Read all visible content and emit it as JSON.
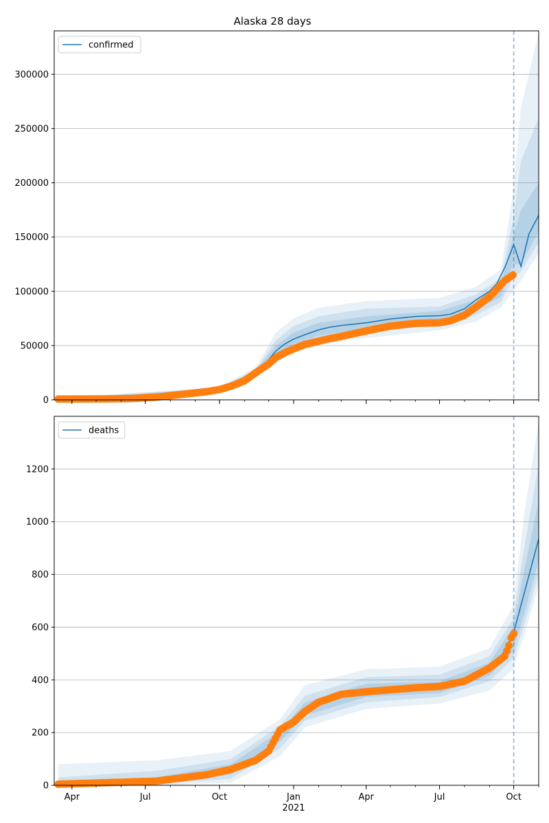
{
  "chart_data": [
    {
      "type": "line",
      "title": "Alaska 28 days",
      "ylim": [
        0,
        340000
      ],
      "yticks": [
        0,
        50000,
        100000,
        150000,
        200000,
        250000,
        300000
      ],
      "grid": "y",
      "legend": {
        "position": "top-left",
        "entries": [
          "confirmed"
        ]
      },
      "vline_date": "2021-10-01",
      "series": [
        {
          "name": "confirmed",
          "kind": "model_median",
          "color": "#1f77b4",
          "x": [
            "2020-03-15",
            "2020-04-15",
            "2020-05-15",
            "2020-06-15",
            "2020-07-15",
            "2020-08-15",
            "2020-09-15",
            "2020-10-01",
            "2020-10-15",
            "2020-11-01",
            "2020-11-15",
            "2020-12-01",
            "2020-12-10",
            "2020-12-20",
            "2021-01-01",
            "2021-01-15",
            "2021-02-01",
            "2021-02-15",
            "2021-03-01",
            "2021-04-01",
            "2021-05-01",
            "2021-06-01",
            "2021-07-01",
            "2021-07-15",
            "2021-08-01",
            "2021-08-15",
            "2021-09-01",
            "2021-09-10",
            "2021-09-20",
            "2021-10-01",
            "2021-10-10",
            "2021-10-20",
            "2021-11-01"
          ],
          "y": [
            800,
            900,
            1100,
            1400,
            2600,
            5200,
            7800,
            9800,
            13000,
            18000,
            26000,
            37000,
            45000,
            51000,
            56000,
            60000,
            64500,
            67000,
            68500,
            71000,
            74500,
            76800,
            77500,
            79000,
            84000,
            92000,
            100000,
            107000,
            122000,
            143000,
            123000,
            153000,
            170000
          ]
        },
        {
          "name": "",
          "kind": "observed",
          "color": "#ff7f0e",
          "x": [
            "2020-03-15",
            "2020-04-15",
            "2020-05-15",
            "2020-06-15",
            "2020-07-15",
            "2020-08-15",
            "2020-09-15",
            "2020-10-01",
            "2020-10-15",
            "2020-11-01",
            "2020-11-15",
            "2020-12-01",
            "2020-12-10",
            "2020-12-20",
            "2021-01-01",
            "2021-01-15",
            "2021-02-01",
            "2021-02-15",
            "2021-03-01",
            "2021-04-01",
            "2021-05-01",
            "2021-06-01",
            "2021-07-01",
            "2021-07-15",
            "2021-08-01",
            "2021-08-15",
            "2021-09-01",
            "2021-09-10",
            "2021-09-20",
            "2021-09-30"
          ],
          "y": [
            700,
            800,
            900,
            1200,
            2500,
            5000,
            7500,
            9500,
            12500,
            17500,
            25000,
            33000,
            39000,
            43000,
            47000,
            51000,
            54000,
            56500,
            58500,
            63500,
            68000,
            70500,
            71000,
            73000,
            78000,
            85500,
            95000,
            102000,
            110000,
            115000
          ]
        }
      ],
      "bands": [
        {
          "opacity": 0.1,
          "x": [
            "2020-03-15",
            "2020-10-01",
            "2020-11-15",
            "2020-12-10",
            "2021-01-01",
            "2021-02-01",
            "2021-04-01",
            "2021-07-01",
            "2021-08-15",
            "2021-09-15",
            "2021-09-30",
            "2021-10-10",
            "2021-11-01"
          ],
          "lower": [
            0,
            8000,
            21000,
            34000,
            44000,
            51000,
            57000,
            64000,
            72000,
            85000,
            100000,
            110000,
            135000
          ],
          "upper": [
            1500,
            12000,
            30000,
            62000,
            75000,
            85000,
            91000,
            94000,
            104000,
            120000,
            190000,
            270000,
            338000
          ]
        },
        {
          "opacity": 0.12,
          "x": [
            "2020-03-15",
            "2020-10-01",
            "2020-11-15",
            "2020-12-10",
            "2021-01-01",
            "2021-02-01",
            "2021-04-01",
            "2021-07-01",
            "2021-08-15",
            "2021-09-15",
            "2021-09-30",
            "2021-10-10",
            "2021-11-01"
          ],
          "lower": [
            300,
            8500,
            23000,
            38000,
            48000,
            55000,
            62000,
            69000,
            78000,
            90000,
            112000,
            118000,
            145000
          ],
          "upper": [
            1200,
            11000,
            28000,
            55000,
            68000,
            77000,
            84000,
            86000,
            97000,
            112000,
            165000,
            220000,
            260000
          ]
        },
        {
          "opacity": 0.15,
          "x": [
            "2020-03-15",
            "2020-10-01",
            "2020-11-15",
            "2020-12-10",
            "2021-01-01",
            "2021-02-01",
            "2021-04-01",
            "2021-07-01",
            "2021-08-15",
            "2021-09-15",
            "2021-09-30",
            "2021-10-10",
            "2021-11-01"
          ],
          "lower": [
            500,
            9000,
            24500,
            41000,
            51000,
            59000,
            66000,
            73000,
            83000,
            95000,
            125000,
            125000,
            155000
          ],
          "upper": [
            1000,
            10500,
            27000,
            50000,
            62000,
            71000,
            77000,
            82000,
            92000,
            106000,
            150000,
            175000,
            200000
          ]
        }
      ]
    },
    {
      "type": "line",
      "title": "",
      "ylim": [
        0,
        1400
      ],
      "yticks": [
        0,
        200,
        400,
        600,
        800,
        1000,
        1200
      ],
      "grid": "y",
      "legend": {
        "position": "top-left",
        "entries": [
          "deaths"
        ]
      },
      "vline_date": "2021-10-01",
      "xticks": [
        {
          "date": "2020-04-01",
          "label": "Apr"
        },
        {
          "date": "2020-07-01",
          "label": "Jul"
        },
        {
          "date": "2020-10-01",
          "label": "Oct"
        },
        {
          "date": "2021-01-01",
          "label": "Jan",
          "sublabel": "2021"
        },
        {
          "date": "2021-04-01",
          "label": "Apr"
        },
        {
          "date": "2021-07-01",
          "label": "Jul"
        },
        {
          "date": "2021-10-01",
          "label": "Oct"
        }
      ],
      "series": [
        {
          "name": "deaths",
          "kind": "model_median",
          "color": "#1f77b4",
          "x": [
            "2020-03-15",
            "2020-05-15",
            "2020-07-15",
            "2020-09-15",
            "2020-10-15",
            "2020-11-15",
            "2020-12-01",
            "2020-12-15",
            "2021-01-01",
            "2021-01-15",
            "2021-02-01",
            "2021-03-01",
            "2021-04-01",
            "2021-06-01",
            "2021-07-01",
            "2021-08-01",
            "2021-09-01",
            "2021-09-20",
            "2021-10-01",
            "2021-10-15",
            "2021-11-01"
          ],
          "y": [
            4,
            10,
            18,
            45,
            62,
            100,
            140,
            205,
            250,
            290,
            320,
            345,
            358,
            368,
            378,
            395,
            440,
            510,
            580,
            740,
            935
          ]
        },
        {
          "name": "",
          "kind": "observed",
          "color": "#ff7f0e",
          "x": [
            "2020-03-15",
            "2020-05-15",
            "2020-07-15",
            "2020-09-15",
            "2020-10-15",
            "2020-11-15",
            "2020-12-01",
            "2020-12-15",
            "2021-01-01",
            "2021-01-15",
            "2021-02-01",
            "2021-03-01",
            "2021-04-01",
            "2021-06-01",
            "2021-07-01",
            "2021-08-01",
            "2021-09-01",
            "2021-09-20",
            "2021-09-25",
            "2021-09-28",
            "2021-10-01"
          ],
          "y": [
            4,
            10,
            16,
            40,
            60,
            95,
            130,
            210,
            240,
            280,
            315,
            345,
            355,
            370,
            375,
            395,
            445,
            490,
            530,
            560,
            575
          ]
        }
      ],
      "bands": [
        {
          "opacity": 0.1,
          "x": [
            "2020-03-15",
            "2020-07-15",
            "2020-10-15",
            "2020-12-15",
            "2021-01-15",
            "2021-04-01",
            "2021-07-01",
            "2021-09-01",
            "2021-09-30",
            "2021-10-15",
            "2021-11-01"
          ],
          "lower": [
            0,
            0,
            10,
            110,
            220,
            290,
            310,
            360,
            440,
            580,
            760
          ],
          "upper": [
            80,
            95,
            130,
            250,
            380,
            440,
            450,
            520,
            680,
            1050,
            1380
          ]
        },
        {
          "opacity": 0.12,
          "x": [
            "2020-03-15",
            "2020-07-15",
            "2020-10-15",
            "2020-12-15",
            "2021-01-15",
            "2021-04-01",
            "2021-07-01",
            "2021-09-01",
            "2021-09-30",
            "2021-10-15",
            "2021-11-01"
          ],
          "lower": [
            0,
            5,
            25,
            140,
            245,
            315,
            335,
            395,
            480,
            620,
            800
          ],
          "upper": [
            30,
            55,
            100,
            225,
            340,
            410,
            420,
            490,
            630,
            920,
            1220
          ]
        },
        {
          "opacity": 0.15,
          "x": [
            "2020-03-15",
            "2020-07-15",
            "2020-10-15",
            "2020-12-15",
            "2021-01-15",
            "2021-04-01",
            "2021-07-01",
            "2021-09-01",
            "2021-09-30",
            "2021-10-15",
            "2021-11-01"
          ],
          "lower": [
            0,
            10,
            40,
            165,
            265,
            335,
            350,
            415,
            510,
            660,
            850
          ],
          "upper": [
            12,
            30,
            80,
            205,
            315,
            385,
            395,
            465,
            600,
            830,
            1080
          ]
        }
      ]
    }
  ],
  "axis": {
    "x_start": "2020-03-10",
    "x_end": "2021-11-01"
  }
}
